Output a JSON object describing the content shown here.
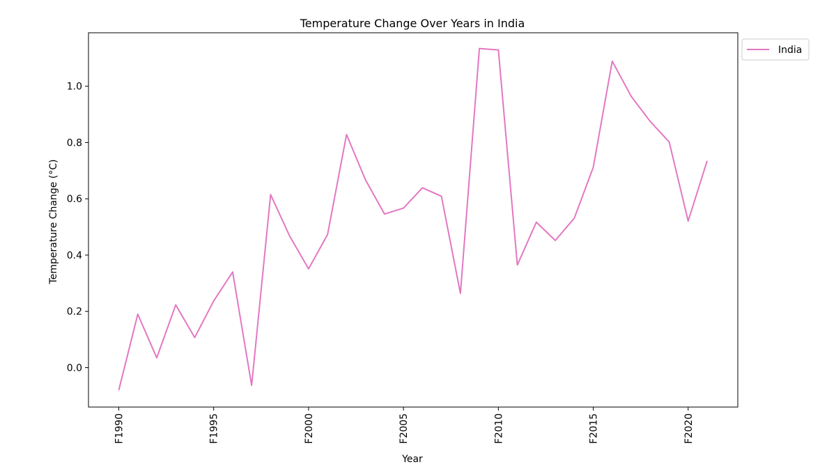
{
  "chart_data": {
    "type": "line",
    "title": "Temperature Change Over Years in India",
    "xlabel": "Year",
    "ylabel": "Temperature Change (°C)",
    "x": [
      "F1990",
      "F1991",
      "F1992",
      "F1993",
      "F1994",
      "F1995",
      "F1996",
      "F1997",
      "F1998",
      "F1999",
      "F2000",
      "F2001",
      "F2002",
      "F2003",
      "F2004",
      "F2005",
      "F2006",
      "F2007",
      "F2008",
      "F2009",
      "F2010",
      "F2011",
      "F2012",
      "F2013",
      "F2014",
      "F2015",
      "F2016",
      "F2017",
      "F2018",
      "F2019",
      "F2020",
      "F2021"
    ],
    "x_tick_labels": [
      "F1990",
      "F1995",
      "F2000",
      "F2005",
      "F2010",
      "F2015",
      "F2020"
    ],
    "y_ticks": [
      0.0,
      0.2,
      0.4,
      0.6,
      0.8,
      1.0
    ],
    "y_tick_labels": [
      "0.0",
      "0.2",
      "0.4",
      "0.6",
      "0.8",
      "1.0"
    ],
    "ylim": [
      -0.14,
      1.19
    ],
    "series": [
      {
        "name": "India",
        "color": "#e377c2",
        "values": [
          -0.08,
          0.19,
          0.035,
          0.223,
          0.107,
          0.237,
          0.34,
          -0.063,
          0.615,
          0.468,
          0.351,
          0.473,
          0.828,
          0.667,
          0.546,
          0.567,
          0.639,
          0.609,
          0.264,
          1.134,
          1.129,
          0.365,
          0.517,
          0.452,
          0.531,
          0.712,
          1.089,
          0.964,
          0.875,
          0.802,
          0.521,
          0.735
        ]
      }
    ],
    "legend": {
      "position": "outside-top-right",
      "labels": [
        "India"
      ]
    },
    "grid": false
  }
}
